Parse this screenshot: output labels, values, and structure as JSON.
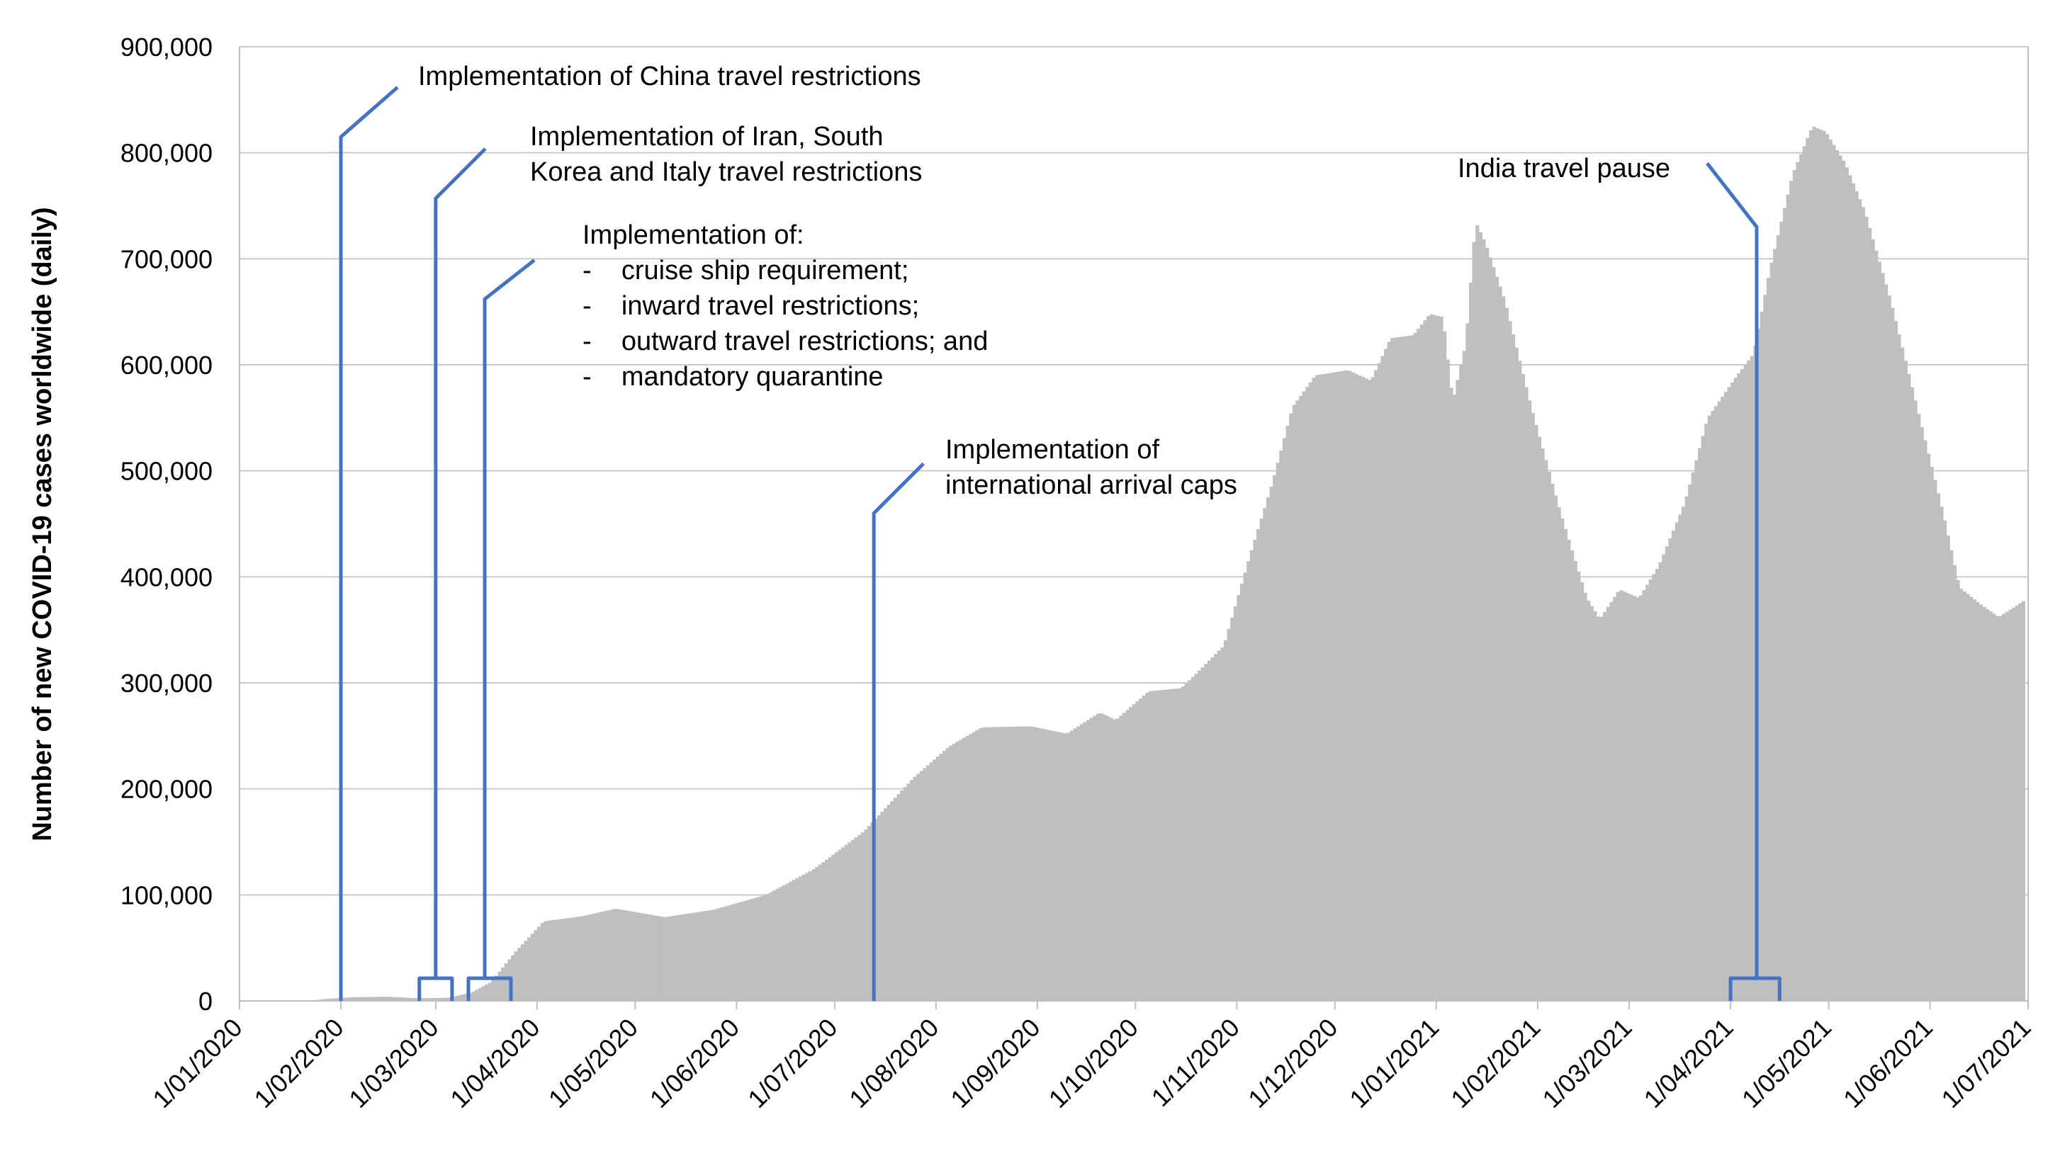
{
  "chart_data": {
    "type": "area",
    "title": "",
    "xlabel": "",
    "ylabel": "Number of new COVID-19 cases worldwide  (daily)",
    "ylim": [
      0,
      900000
    ],
    "xlim": [
      "2020-01-01",
      "2021-07-01"
    ],
    "grid": true,
    "legend": "none",
    "y_ticks": [
      {
        "value": 0,
        "label": "0"
      },
      {
        "value": 100000,
        "label": "100,000"
      },
      {
        "value": 200000,
        "label": "200,000"
      },
      {
        "value": 300000,
        "label": "300,000"
      },
      {
        "value": 400000,
        "label": "400,000"
      },
      {
        "value": 500000,
        "label": "500,000"
      },
      {
        "value": 600000,
        "label": "600,000"
      },
      {
        "value": 700000,
        "label": "700,000"
      },
      {
        "value": 800000,
        "label": "800,000"
      },
      {
        "value": 900000,
        "label": "900,000"
      }
    ],
    "x_ticks": [
      {
        "date": "2020-01-01",
        "label": "1/01/2020"
      },
      {
        "date": "2020-02-01",
        "label": "1/02/2020"
      },
      {
        "date": "2020-03-01",
        "label": "1/03/2020"
      },
      {
        "date": "2020-04-01",
        "label": "1/04/2020"
      },
      {
        "date": "2020-05-01",
        "label": "1/05/2020"
      },
      {
        "date": "2020-06-01",
        "label": "1/06/2020"
      },
      {
        "date": "2020-07-01",
        "label": "1/07/2020"
      },
      {
        "date": "2020-08-01",
        "label": "1/08/2020"
      },
      {
        "date": "2020-09-01",
        "label": "1/09/2020"
      },
      {
        "date": "2020-10-01",
        "label": "1/10/2020"
      },
      {
        "date": "2020-11-01",
        "label": "1/11/2020"
      },
      {
        "date": "2020-12-01",
        "label": "1/12/2020"
      },
      {
        "date": "2021-01-01",
        "label": "1/01/2021"
      },
      {
        "date": "2021-02-01",
        "label": "1/02/2021"
      },
      {
        "date": "2021-03-01",
        "label": "1/03/2021"
      },
      {
        "date": "2021-04-01",
        "label": "1/04/2021"
      },
      {
        "date": "2021-05-01",
        "label": "1/05/2021"
      },
      {
        "date": "2021-06-01",
        "label": "1/06/2021"
      },
      {
        "date": "2021-07-01",
        "label": "1/07/2021"
      }
    ],
    "series": [
      {
        "color": "#bfbfbf",
        "points": [
          {
            "date": "2020-01-22",
            "value": 0
          },
          {
            "date": "2020-01-28",
            "value": 2000
          },
          {
            "date": "2020-02-05",
            "value": 3500
          },
          {
            "date": "2020-02-15",
            "value": 4000
          },
          {
            "date": "2020-02-25",
            "value": 2500
          },
          {
            "date": "2020-03-05",
            "value": 3000
          },
          {
            "date": "2020-03-12",
            "value": 8000
          },
          {
            "date": "2020-03-18",
            "value": 18000
          },
          {
            "date": "2020-03-25",
            "value": 45000
          },
          {
            "date": "2020-04-03",
            "value": 75000
          },
          {
            "date": "2020-04-15",
            "value": 80000
          },
          {
            "date": "2020-04-25",
            "value": 87000
          },
          {
            "date": "2020-05-10",
            "value": 79000
          },
          {
            "date": "2020-05-25",
            "value": 86000
          },
          {
            "date": "2020-06-10",
            "value": 100000
          },
          {
            "date": "2020-06-25",
            "value": 125000
          },
          {
            "date": "2020-07-10",
            "value": 160000
          },
          {
            "date": "2020-07-25",
            "value": 210000
          },
          {
            "date": "2020-08-05",
            "value": 240000
          },
          {
            "date": "2020-08-15",
            "value": 258000
          },
          {
            "date": "2020-08-30",
            "value": 259000
          },
          {
            "date": "2020-09-10",
            "value": 252000
          },
          {
            "date": "2020-09-20",
            "value": 272000
          },
          {
            "date": "2020-09-25",
            "value": 265000
          },
          {
            "date": "2020-10-05",
            "value": 292000
          },
          {
            "date": "2020-10-15",
            "value": 295000
          },
          {
            "date": "2020-10-20",
            "value": 310000
          },
          {
            "date": "2020-10-28",
            "value": 335000
          },
          {
            "date": "2020-11-05",
            "value": 420000
          },
          {
            "date": "2020-11-12",
            "value": 490000
          },
          {
            "date": "2020-11-18",
            "value": 560000
          },
          {
            "date": "2020-11-25",
            "value": 590000
          },
          {
            "date": "2020-12-05",
            "value": 595000
          },
          {
            "date": "2020-12-12",
            "value": 585000
          },
          {
            "date": "2020-12-18",
            "value": 625000
          },
          {
            "date": "2020-12-25",
            "value": 628000
          },
          {
            "date": "2020-12-30",
            "value": 648000
          },
          {
            "date": "2021-01-03",
            "value": 645000
          },
          {
            "date": "2021-01-06",
            "value": 565000
          },
          {
            "date": "2021-01-10",
            "value": 620000
          },
          {
            "date": "2021-01-13",
            "value": 735000
          },
          {
            "date": "2021-01-16",
            "value": 715000
          },
          {
            "date": "2021-01-22",
            "value": 660000
          },
          {
            "date": "2021-01-30",
            "value": 560000
          },
          {
            "date": "2021-02-08",
            "value": 460000
          },
          {
            "date": "2021-02-16",
            "value": 380000
          },
          {
            "date": "2021-02-20",
            "value": 360000
          },
          {
            "date": "2021-02-26",
            "value": 388000
          },
          {
            "date": "2021-03-04",
            "value": 380000
          },
          {
            "date": "2021-03-10",
            "value": 410000
          },
          {
            "date": "2021-03-18",
            "value": 470000
          },
          {
            "date": "2021-03-25",
            "value": 550000
          },
          {
            "date": "2021-04-03",
            "value": 590000
          },
          {
            "date": "2021-04-08",
            "value": 610000
          },
          {
            "date": "2021-04-13",
            "value": 690000
          },
          {
            "date": "2021-04-20",
            "value": 780000
          },
          {
            "date": "2021-04-26",
            "value": 825000
          },
          {
            "date": "2021-04-30",
            "value": 820000
          },
          {
            "date": "2021-05-06",
            "value": 790000
          },
          {
            "date": "2021-05-12",
            "value": 745000
          },
          {
            "date": "2021-05-20",
            "value": 660000
          },
          {
            "date": "2021-05-28",
            "value": 560000
          },
          {
            "date": "2021-06-05",
            "value": 460000
          },
          {
            "date": "2021-06-10",
            "value": 390000
          },
          {
            "date": "2021-06-16",
            "value": 375000
          },
          {
            "date": "2021-06-22",
            "value": 362000
          },
          {
            "date": "2021-06-27",
            "value": 372000
          },
          {
            "date": "2021-06-30",
            "value": 378000
          }
        ]
      }
    ],
    "annotations": [
      {
        "date": "2020-02-01",
        "peak": 815000,
        "line_color": "#4472c4",
        "lines": [
          "Implementation of China travel restrictions"
        ]
      },
      {
        "date": "2020-03-01",
        "peak": 757000,
        "bracket": [
          "2020-02-25",
          "2020-03-06"
        ],
        "line_color": "#4472c4",
        "lines": [
          "Implementation of Iran, South",
          "Korea and Italy travel restrictions"
        ]
      },
      {
        "date": "2020-03-16",
        "peak": 662000,
        "bracket": [
          "2020-03-11",
          "2020-03-24"
        ],
        "line_color": "#4472c4",
        "lines": [
          "Implementation of:",
          "-    cruise ship requirement;",
          "-    inward travel restrictions;",
          "-    outward travel restrictions; and",
          "-    mandatory quarantine"
        ]
      },
      {
        "date": "2020-07-13",
        "peak": 460000,
        "line_color": "#4472c4",
        "lines": [
          "Implementation of",
          "international arrival caps"
        ]
      },
      {
        "date": "2021-04-09",
        "peak": 730000,
        "bracket": [
          "2021-04-01",
          "2021-04-16"
        ],
        "line_color": "#4472c4",
        "lines": [
          "India travel pause"
        ]
      }
    ]
  }
}
